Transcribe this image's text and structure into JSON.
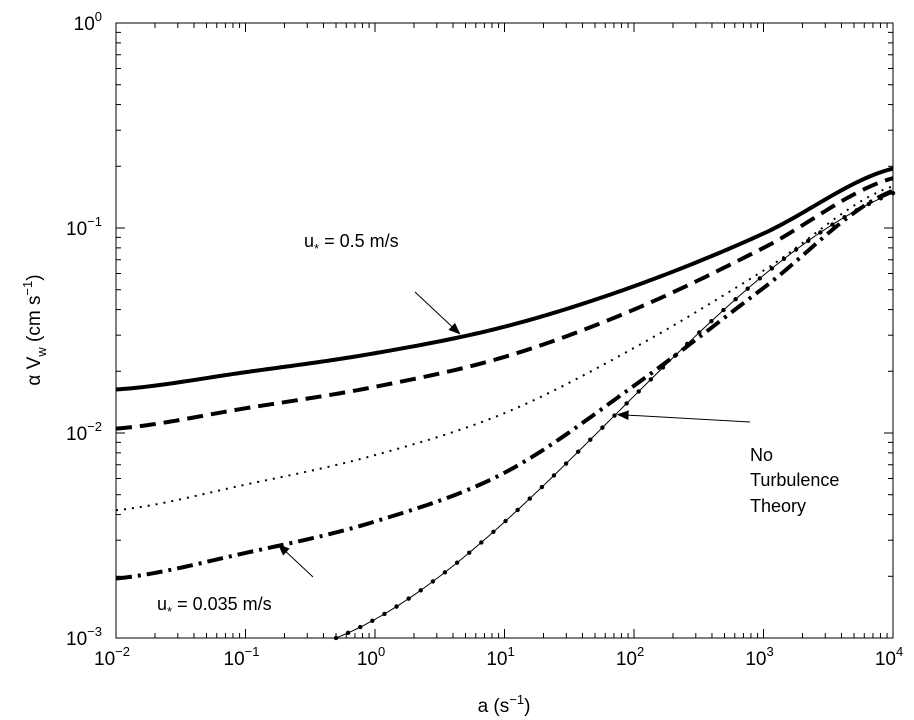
{
  "chart_data": {
    "type": "line",
    "xscale": "log",
    "yscale": "log",
    "xlim": [
      0.01,
      10000
    ],
    "ylim": [
      0.001,
      1
    ],
    "xlabel": {
      "base": "a (s",
      "exp": "−1",
      "close": ")"
    },
    "ylabel": {
      "pre": "α V",
      "sub": "w",
      "mid": " (cm s",
      "exp": "−1",
      "close": ")"
    },
    "x_ticks": [
      {
        "base": "10",
        "exp": "−2",
        "value": 0.01
      },
      {
        "base": "10",
        "exp": "−1",
        "value": 0.1
      },
      {
        "base": "10",
        "exp": "0",
        "value": 1
      },
      {
        "base": "10",
        "exp": "1",
        "value": 10
      },
      {
        "base": "10",
        "exp": "2",
        "value": 100
      },
      {
        "base": "10",
        "exp": "3",
        "value": 1000
      },
      {
        "base": "10",
        "exp": "4",
        "value": 10000
      }
    ],
    "y_ticks": [
      {
        "base": "10",
        "exp": "−3",
        "value": 0.001
      },
      {
        "base": "10",
        "exp": "−2",
        "value": 0.01
      },
      {
        "base": "10",
        "exp": "−1",
        "value": 0.1
      },
      {
        "base": "10",
        "exp": "0",
        "value": 1
      }
    ],
    "series": [
      {
        "style": "solid-thick",
        "x": [
          0.01,
          0.1,
          1,
          10,
          100,
          1000,
          10000
        ],
        "y": [
          0.0163,
          0.0198,
          0.0245,
          0.033,
          0.052,
          0.094,
          0.195
        ]
      },
      {
        "style": "dashed",
        "x": [
          0.01,
          0.1,
          1,
          10,
          100,
          1000,
          10000
        ],
        "y": [
          0.0105,
          0.0132,
          0.0168,
          0.0235,
          0.04,
          0.08,
          0.175
        ]
      },
      {
        "style": "dotted",
        "x": [
          0.01,
          0.1,
          1,
          10,
          100,
          1000,
          10000
        ],
        "y": [
          0.0042,
          0.0056,
          0.0078,
          0.0125,
          0.026,
          0.062,
          0.16
        ]
      },
      {
        "style": "dashdot",
        "x": [
          0.01,
          0.1,
          1,
          10,
          100,
          1000,
          10000
        ],
        "y": [
          0.00195,
          0.0026,
          0.0037,
          0.0064,
          0.017,
          0.051,
          0.152
        ]
      },
      {
        "style": "thin-dots",
        "x": [
          0.5,
          10000
        ],
        "y": [
          0.001,
          0.148
        ]
      }
    ],
    "annotations": [
      {
        "id": "top",
        "pre": "u",
        "sub": "*",
        "post": " = 0.5 m/s",
        "target_x": 4.5,
        "target_y": 0.0305
      },
      {
        "id": "bottom",
        "pre": "u",
        "sub": "*",
        "post": " = 0.035 m/s",
        "target_x": 0.18,
        "target_y": 0.00285
      },
      {
        "id": "theory",
        "lines": [
          "No",
          "Turbulence",
          "Theory"
        ],
        "target_x": 75,
        "target_y": 0.0123
      }
    ],
    "grid": false,
    "legend": "none"
  }
}
